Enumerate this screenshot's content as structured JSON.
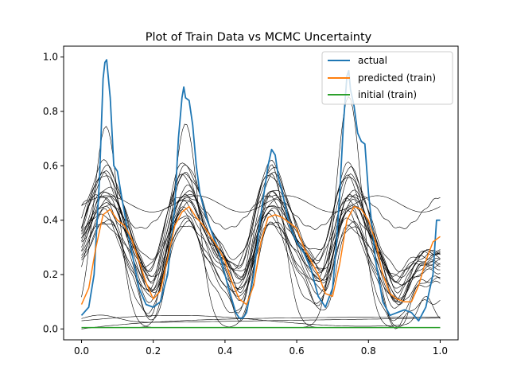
{
  "chart_data": {
    "type": "line",
    "title": "Plot of Train Data vs MCMC Uncertainty",
    "xlabel": "",
    "ylabel": "",
    "xlim": [
      -0.05,
      1.05
    ],
    "ylim": [
      -0.04,
      1.04
    ],
    "xticks": [
      0.0,
      0.2,
      0.4,
      0.6,
      0.8,
      1.0
    ],
    "xtick_labels": [
      "0.0",
      "0.2",
      "0.4",
      "0.6",
      "0.8",
      "1.0"
    ],
    "yticks": [
      0.0,
      0.2,
      0.4,
      0.6,
      0.8,
      1.0
    ],
    "ytick_labels": [
      "0.0",
      "0.2",
      "0.4",
      "0.6",
      "0.8",
      "1.0"
    ],
    "grid": false,
    "legend": {
      "position": "upper right",
      "entries": [
        {
          "label": "actual",
          "color": "#1f77b4"
        },
        {
          "label": "predicted (train)",
          "color": "#ff7f0e"
        },
        {
          "label": "initial (train)",
          "color": "#2ca02c"
        }
      ]
    },
    "series": [
      {
        "name": "actual",
        "color": "#1f77b4",
        "x": [
          0.0,
          0.02,
          0.035,
          0.05,
          0.06,
          0.065,
          0.07,
          0.08,
          0.09,
          0.1,
          0.11,
          0.13,
          0.16,
          0.18,
          0.2,
          0.22,
          0.24,
          0.26,
          0.27,
          0.28,
          0.285,
          0.29,
          0.3,
          0.31,
          0.32,
          0.33,
          0.35,
          0.38,
          0.41,
          0.43,
          0.44,
          0.45,
          0.46,
          0.48,
          0.5,
          0.52,
          0.53,
          0.54,
          0.55,
          0.56,
          0.58,
          0.6,
          0.62,
          0.64,
          0.66,
          0.68,
          0.7,
          0.71,
          0.72,
          0.73,
          0.74,
          0.745,
          0.75,
          0.76,
          0.77,
          0.78,
          0.79,
          0.8,
          0.82,
          0.84,
          0.86,
          0.88,
          0.9,
          0.92,
          0.94,
          0.96,
          0.98,
          0.99,
          1.0
        ],
        "y": [
          0.05,
          0.08,
          0.2,
          0.55,
          0.92,
          0.98,
          0.99,
          0.85,
          0.6,
          0.58,
          0.5,
          0.35,
          0.15,
          0.09,
          0.08,
          0.1,
          0.2,
          0.45,
          0.7,
          0.85,
          0.89,
          0.85,
          0.84,
          0.75,
          0.6,
          0.5,
          0.4,
          0.3,
          0.15,
          0.06,
          0.04,
          0.04,
          0.06,
          0.2,
          0.42,
          0.6,
          0.66,
          0.64,
          0.55,
          0.5,
          0.38,
          0.32,
          0.28,
          0.22,
          0.12,
          0.08,
          0.15,
          0.3,
          0.5,
          0.75,
          0.93,
          0.95,
          0.88,
          0.82,
          0.72,
          0.69,
          0.68,
          0.5,
          0.25,
          0.1,
          0.05,
          0.06,
          0.07,
          0.06,
          0.03,
          0.08,
          0.2,
          0.4,
          0.4
        ]
      },
      {
        "name": "predicted (train)",
        "color": "#ff7f0e",
        "x": [
          0.0,
          0.02,
          0.04,
          0.06,
          0.08,
          0.1,
          0.12,
          0.14,
          0.16,
          0.18,
          0.2,
          0.22,
          0.24,
          0.26,
          0.28,
          0.3,
          0.32,
          0.34,
          0.36,
          0.38,
          0.4,
          0.42,
          0.44,
          0.46,
          0.48,
          0.5,
          0.52,
          0.54,
          0.56,
          0.58,
          0.6,
          0.62,
          0.64,
          0.66,
          0.68,
          0.7,
          0.72,
          0.74,
          0.76,
          0.78,
          0.8,
          0.82,
          0.84,
          0.86,
          0.88,
          0.9,
          0.92,
          0.94,
          0.96,
          0.98,
          1.0
        ],
        "y": [
          0.09,
          0.15,
          0.3,
          0.42,
          0.44,
          0.4,
          0.38,
          0.33,
          0.25,
          0.17,
          0.11,
          0.14,
          0.26,
          0.38,
          0.43,
          0.45,
          0.41,
          0.38,
          0.34,
          0.3,
          0.25,
          0.17,
          0.11,
          0.09,
          0.16,
          0.32,
          0.41,
          0.42,
          0.41,
          0.39,
          0.37,
          0.3,
          0.25,
          0.2,
          0.13,
          0.12,
          0.24,
          0.4,
          0.45,
          0.44,
          0.4,
          0.32,
          0.2,
          0.13,
          0.11,
          0.1,
          0.1,
          0.16,
          0.25,
          0.32,
          0.34
        ]
      },
      {
        "name": "initial (train)",
        "color": "#2ca02c",
        "x": [
          0.0,
          0.2,
          0.4,
          0.6,
          0.8,
          1.0
        ],
        "y": [
          0.005,
          0.005,
          0.005,
          0.005,
          0.005,
          0.005
        ]
      }
    ]
  }
}
